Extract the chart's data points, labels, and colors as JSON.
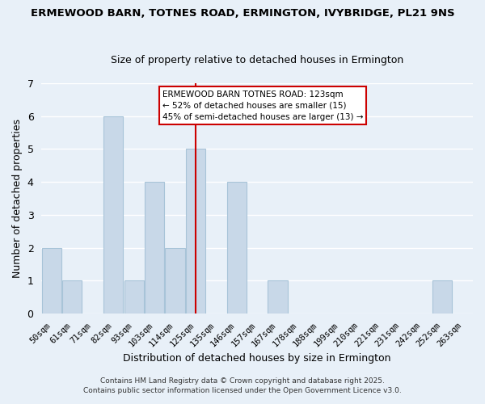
{
  "title": "ERMEWOOD BARN, TOTNES ROAD, ERMINGTON, IVYBRIDGE, PL21 9NS",
  "subtitle": "Size of property relative to detached houses in Ermington",
  "xlabel": "Distribution of detached houses by size in Ermington",
  "ylabel": "Number of detached properties",
  "bins": [
    "50sqm",
    "61sqm",
    "71sqm",
    "82sqm",
    "93sqm",
    "103sqm",
    "114sqm",
    "125sqm",
    "135sqm",
    "146sqm",
    "157sqm",
    "167sqm",
    "178sqm",
    "188sqm",
    "199sqm",
    "210sqm",
    "221sqm",
    "231sqm",
    "242sqm",
    "252sqm",
    "263sqm"
  ],
  "counts": [
    2,
    1,
    0,
    6,
    1,
    4,
    2,
    5,
    0,
    4,
    0,
    1,
    0,
    0,
    0,
    0,
    0,
    0,
    0,
    1,
    0
  ],
  "bar_color": "#c8d8e8",
  "bar_edge_color": "#a8c4d8",
  "grid_color": "#ffffff",
  "background_color": "#e8f0f8",
  "reference_line_bin_index": 7,
  "reference_line_color": "#cc0000",
  "annotation_title": "ERMEWOOD BARN TOTNES ROAD: 123sqm",
  "annotation_line1": "← 52% of detached houses are smaller (15)",
  "annotation_line2": "45% of semi-detached houses are larger (13) →",
  "annotation_box_color": "white",
  "annotation_box_edge_color": "#cc0000",
  "ylim": [
    0,
    7
  ],
  "yticks": [
    0,
    1,
    2,
    3,
    4,
    5,
    6,
    7
  ],
  "footnote1": "Contains HM Land Registry data © Crown copyright and database right 2025.",
  "footnote2": "Contains public sector information licensed under the Open Government Licence v3.0."
}
